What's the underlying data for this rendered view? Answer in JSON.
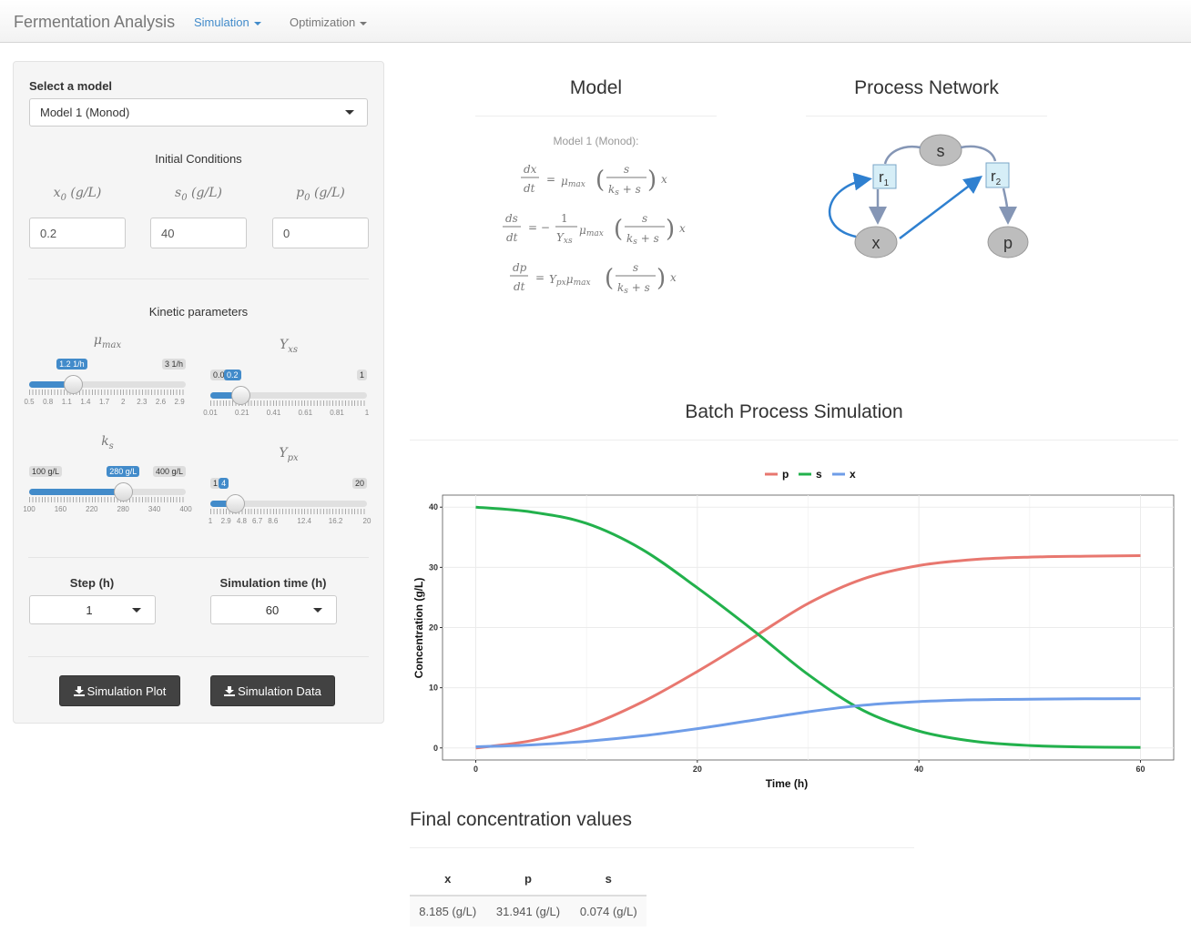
{
  "navbar": {
    "brand": "Fermentation Analysis",
    "menus": [
      {
        "label": "Simulation",
        "active": true
      },
      {
        "label": "Optimization",
        "active": false
      }
    ]
  },
  "sidebar": {
    "model_label": "Select a model",
    "model_value": "Model 1 (Monod)",
    "initial_conditions_title": "Initial Conditions",
    "initial_conditions": [
      {
        "label": "x",
        "sub": "0",
        "unit": "(g/L)",
        "value": "0.2"
      },
      {
        "label": "s",
        "sub": "0",
        "unit": "(g/L)",
        "value": "40"
      },
      {
        "label": "p",
        "sub": "0",
        "unit": "(g/L)",
        "value": "0"
      }
    ],
    "kinetic_title": "Kinetic parameters",
    "sliders": [
      {
        "label": "μ",
        "sub": "max",
        "min_label": "0.5",
        "max_label": "3 1/h",
        "current_label": "1.2 1/h",
        "min": 0.5,
        "max": 3,
        "value": 1.2,
        "ticks": [
          "0.5",
          "0.8",
          "1.1",
          "1.4",
          "1.7",
          "2",
          "2.3",
          "2.6",
          "2.9"
        ]
      },
      {
        "label": "Y",
        "sub": "xs",
        "min_label": "0.01",
        "max_label": "1",
        "current_label": "0.2",
        "min": 0.01,
        "max": 1,
        "value": 0.2,
        "ticks": [
          "0.01",
          "0.21",
          "0.41",
          "0.61",
          "0.81",
          "1"
        ]
      },
      {
        "label": "k",
        "sub": "s",
        "min_label": "100 g/L",
        "max_label": "400 g/L",
        "current_label": "280 g/L",
        "min": 100,
        "max": 400,
        "value": 280,
        "ticks": [
          "100",
          "160",
          "220",
          "280",
          "340",
          "400"
        ]
      },
      {
        "label": "Y",
        "sub": "px",
        "min_label": "1",
        "max_label": "20",
        "current_label": "4",
        "min": 1,
        "max": 20,
        "value": 4,
        "ticks": [
          "1",
          "2.9",
          "4.8",
          "6.7",
          "8.6",
          "12.4",
          "16.2",
          "20"
        ]
      }
    ],
    "step_label": "Step (h)",
    "step_value": "1",
    "simtime_label": "Simulation time (h)",
    "simtime_value": "60",
    "btn_plot": "Simulation Plot",
    "btn_data": "Simulation Data"
  },
  "model_panel": {
    "title": "Model",
    "subtitle": "Model 1 (Monod):"
  },
  "network_panel": {
    "title": "Process Network",
    "nodes": {
      "s": "s",
      "r1": "r",
      "r1_sub": "1",
      "r2": "r",
      "r2_sub": "2",
      "x": "x",
      "p": "p"
    }
  },
  "simulation": {
    "title": "Batch Process Simulation"
  },
  "chart_data": {
    "type": "line",
    "title": "",
    "xlabel": "Time (h)",
    "ylabel": "Concentration (g/L)",
    "xlim": [
      0,
      60
    ],
    "ylim": [
      0,
      40
    ],
    "xticks": [
      0,
      20,
      40,
      60
    ],
    "yticks": [
      0,
      10,
      20,
      30,
      40
    ],
    "grid": true,
    "legend_position": "top",
    "x": [
      0,
      5,
      10,
      15,
      20,
      25,
      30,
      35,
      40,
      45,
      50,
      55,
      60
    ],
    "series": [
      {
        "name": "p",
        "color": "#e8776f",
        "values": [
          0,
          1.2,
          3.6,
          7.6,
          12.7,
          18.3,
          24.0,
          28.1,
          30.3,
          31.3,
          31.7,
          31.85,
          31.94
        ]
      },
      {
        "name": "s",
        "color": "#22b14c",
        "values": [
          40,
          39.2,
          37.3,
          33.0,
          26.6,
          19.6,
          12.2,
          6.2,
          2.8,
          1.1,
          0.4,
          0.15,
          0.074
        ]
      },
      {
        "name": "x",
        "color": "#6f9de8",
        "values": [
          0.2,
          0.5,
          1.1,
          2.0,
          3.2,
          4.6,
          6.0,
          7.1,
          7.7,
          8.0,
          8.1,
          8.16,
          8.185
        ]
      }
    ]
  },
  "final_values": {
    "title": "Final concentration values",
    "headers": [
      "x",
      "p",
      "s"
    ],
    "row": [
      "8.185 (g/L)",
      "31.941 (g/L)",
      "0.074 (g/L)"
    ]
  },
  "colors": {
    "accent": "#428bca",
    "button_dark": "#424242"
  }
}
